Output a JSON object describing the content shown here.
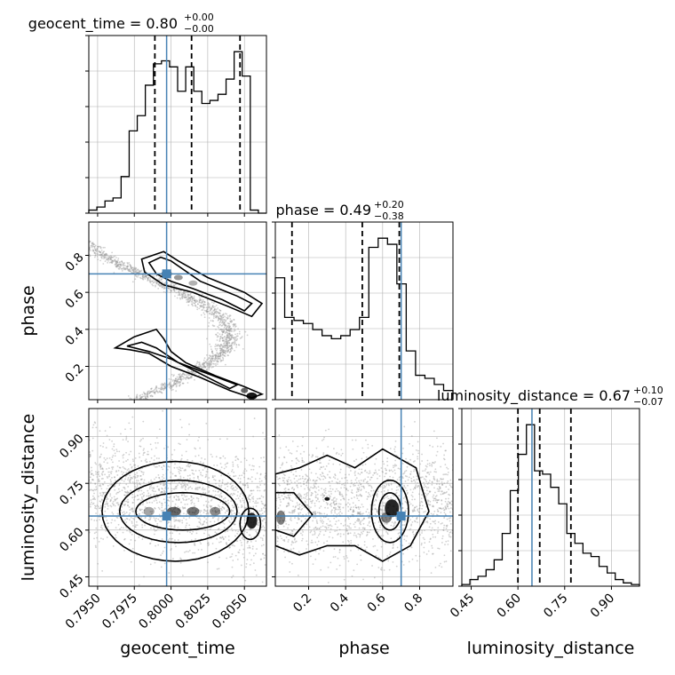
{
  "colors": {
    "truth": "#4682b4",
    "hist": "#000000",
    "grid": "#b0b0b0",
    "points": "#9a9a9a"
  },
  "chart_data": {
    "type": "corner",
    "parameters": [
      "geocent_time",
      "phase",
      "luminosity_distance"
    ],
    "axis_labels": [
      "geocent_time",
      "phase",
      "luminosity_distance"
    ],
    "titles": [
      {
        "param": "geocent_time",
        "text": "geocent_time = 0.80",
        "sup": "+0.00",
        "sub": "−0.00"
      },
      {
        "param": "phase",
        "text": "phase = 0.49",
        "sup": "+0.20",
        "sub": "−0.38"
      },
      {
        "param": "luminosity_distance",
        "text": "luminosity_distance = 0.67",
        "sup": "+0.10",
        "sub": "−0.07"
      }
    ],
    "ranges": {
      "geocent_time": [
        0.7944,
        0.8065
      ],
      "phase": [
        0.02,
        0.98
      ],
      "luminosity_distance": [
        0.42,
        0.99
      ]
    },
    "ticks": {
      "geocent_time": {
        "values": [
          0.795,
          0.7975,
          0.8,
          0.8025,
          0.805
        ],
        "labels": [
          "0.7950",
          "0.7975",
          "0.8000",
          "0.8025",
          "0.8050"
        ]
      },
      "phase": {
        "values": [
          0.2,
          0.4,
          0.6,
          0.8
        ],
        "labels": [
          "0.2",
          "0.4",
          "0.6",
          "0.8"
        ]
      },
      "luminosity_distance": {
        "values": [
          0.45,
          0.6,
          0.75,
          0.9
        ],
        "labels": [
          "0.45",
          "0.60",
          "0.75",
          "0.90"
        ]
      }
    },
    "truths": {
      "geocent_time": 0.7997,
      "phase": 0.7,
      "luminosity_distance": 0.645
    },
    "quantiles": {
      "geocent_time": [
        0.7989,
        0.8014,
        0.8047
      ],
      "phase": [
        0.11,
        0.49,
        0.69
      ],
      "luminosity_distance": [
        0.6,
        0.67,
        0.77
      ]
    },
    "histograms": {
      "geocent_time": {
        "edges_range": [
          0.7944,
          0.8065
        ],
        "counts": [
          1,
          2,
          4,
          5,
          12,
          27,
          32,
          42,
          49,
          50,
          48,
          40,
          48,
          40,
          36,
          37,
          39,
          44,
          53,
          45,
          1,
          0
        ]
      },
      "phase": {
        "edges_range": [
          0.02,
          0.98
        ],
        "counts": [
          40,
          27,
          26,
          25,
          23,
          21,
          20,
          21,
          23,
          27,
          50,
          53,
          51,
          38,
          16,
          8,
          7,
          5,
          3
        ]
      },
      "luminosity_distance": {
        "edges_range": [
          0.42,
          0.99
        ],
        "counts": [
          0.5,
          2,
          3,
          5,
          8,
          16,
          29,
          40,
          49,
          35,
          34,
          30,
          25,
          16,
          13,
          10,
          9,
          6,
          4,
          2,
          1,
          0.5
        ]
      }
    },
    "pairs": [
      {
        "x": "geocent_time",
        "y": "phase"
      },
      {
        "x": "geocent_time",
        "y": "luminosity_distance"
      },
      {
        "x": "phase",
        "y": "luminosity_distance"
      }
    ],
    "grid": true
  }
}
